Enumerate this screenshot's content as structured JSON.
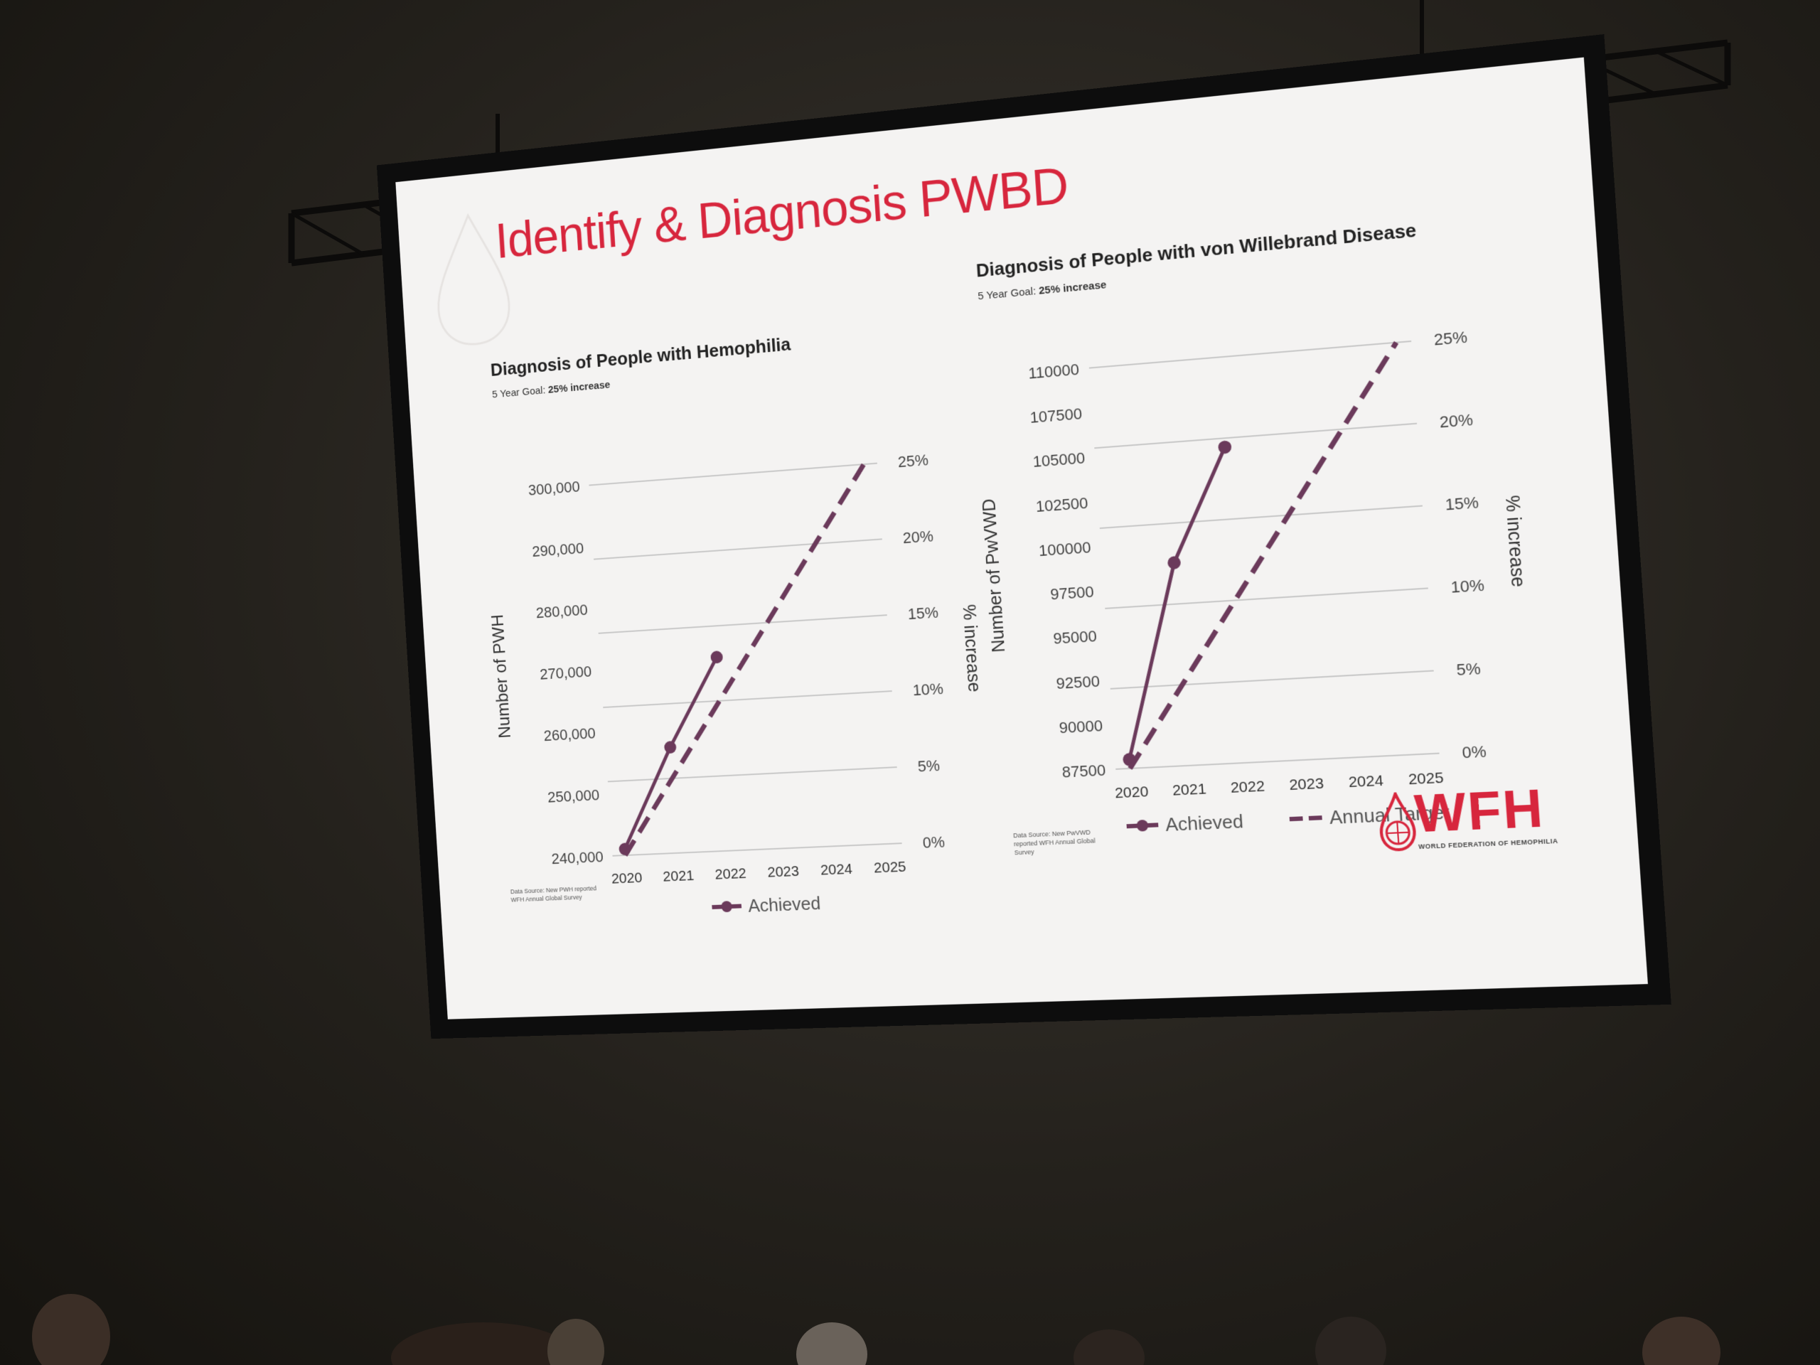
{
  "slide": {
    "title": "Identify & Diagnosis PWBD",
    "logo": {
      "text": "WFH",
      "subtitle": "WORLD FEDERATION OF HEMOPHILIA"
    }
  },
  "chart_data": [
    {
      "type": "line",
      "title": "Diagnosis of People with Hemophilia",
      "goal_label": "5 Year Goal:",
      "goal_value": "25% increase",
      "xlabel": "",
      "ylabel": "Number of PWH",
      "y2label": "% increase",
      "categories": [
        "2020",
        "2021",
        "2022",
        "2023",
        "2024",
        "2025"
      ],
      "ylim": [
        240000,
        300000
      ],
      "yticks": [
        "240,000",
        "250,000",
        "260,000",
        "270,000",
        "280,000",
        "290,000",
        "300,000"
      ],
      "y2lim": [
        0,
        25
      ],
      "y2ticks": [
        "0%",
        "5%",
        "10%",
        "15%",
        "20%",
        "25%"
      ],
      "series": [
        {
          "name": "Achieved",
          "style": "solid-marker",
          "x": [
            "2020",
            "2021",
            "2022"
          ],
          "values": [
            241000,
            257000,
            271000
          ]
        },
        {
          "name": "",
          "style": "dashed",
          "x": [
            "2020",
            "2025"
          ],
          "values": [
            0,
            25
          ],
          "axis": "right"
        }
      ],
      "legend": [
        "Achieved"
      ],
      "legend_position": "bottom",
      "source_note": "Data Source: New PWH reported WFH Annual Global Survey",
      "grid": true
    },
    {
      "type": "line",
      "title": "Diagnosis of People with von Willebrand Disease",
      "goal_label": "5 Year Goal:",
      "goal_value": "25% increase",
      "xlabel": "",
      "ylabel": "Number of PwVWD",
      "y2label": "% increase",
      "categories": [
        "2020",
        "2021",
        "2022",
        "2023",
        "2024",
        "2025"
      ],
      "ylim": [
        87500,
        110000
      ],
      "yticks": [
        "87500",
        "90000",
        "92500",
        "95000",
        "97500",
        "100000",
        "102500",
        "105000",
        "107500",
        "110000"
      ],
      "y2lim": [
        0,
        25
      ],
      "y2ticks": [
        "0%",
        "5%",
        "10%",
        "15%",
        "20%",
        "25%"
      ],
      "series": [
        {
          "name": "Achieved",
          "style": "solid-marker",
          "x": [
            "2020",
            "2021",
            "2022"
          ],
          "values": [
            88000,
            98800,
            105000
          ]
        },
        {
          "name": "Annual Target",
          "style": "dashed",
          "x": [
            "2020",
            "2021",
            "2022",
            "2023",
            "2024",
            "2025"
          ],
          "values": [
            0,
            5,
            10,
            15,
            20,
            25
          ],
          "axis": "right"
        }
      ],
      "legend": [
        "Achieved",
        "Annual Target"
      ],
      "legend_position": "bottom",
      "source_note": "Data Source: New PwVWD reported WFH Annual Global Survey",
      "grid": true
    }
  ],
  "colors": {
    "title_red": "#d7263d",
    "series_purple": "#6b3a5b",
    "grid": "#c8c8c8",
    "slide_bg": "#f4f3f2",
    "room_bg": "#24211c"
  }
}
